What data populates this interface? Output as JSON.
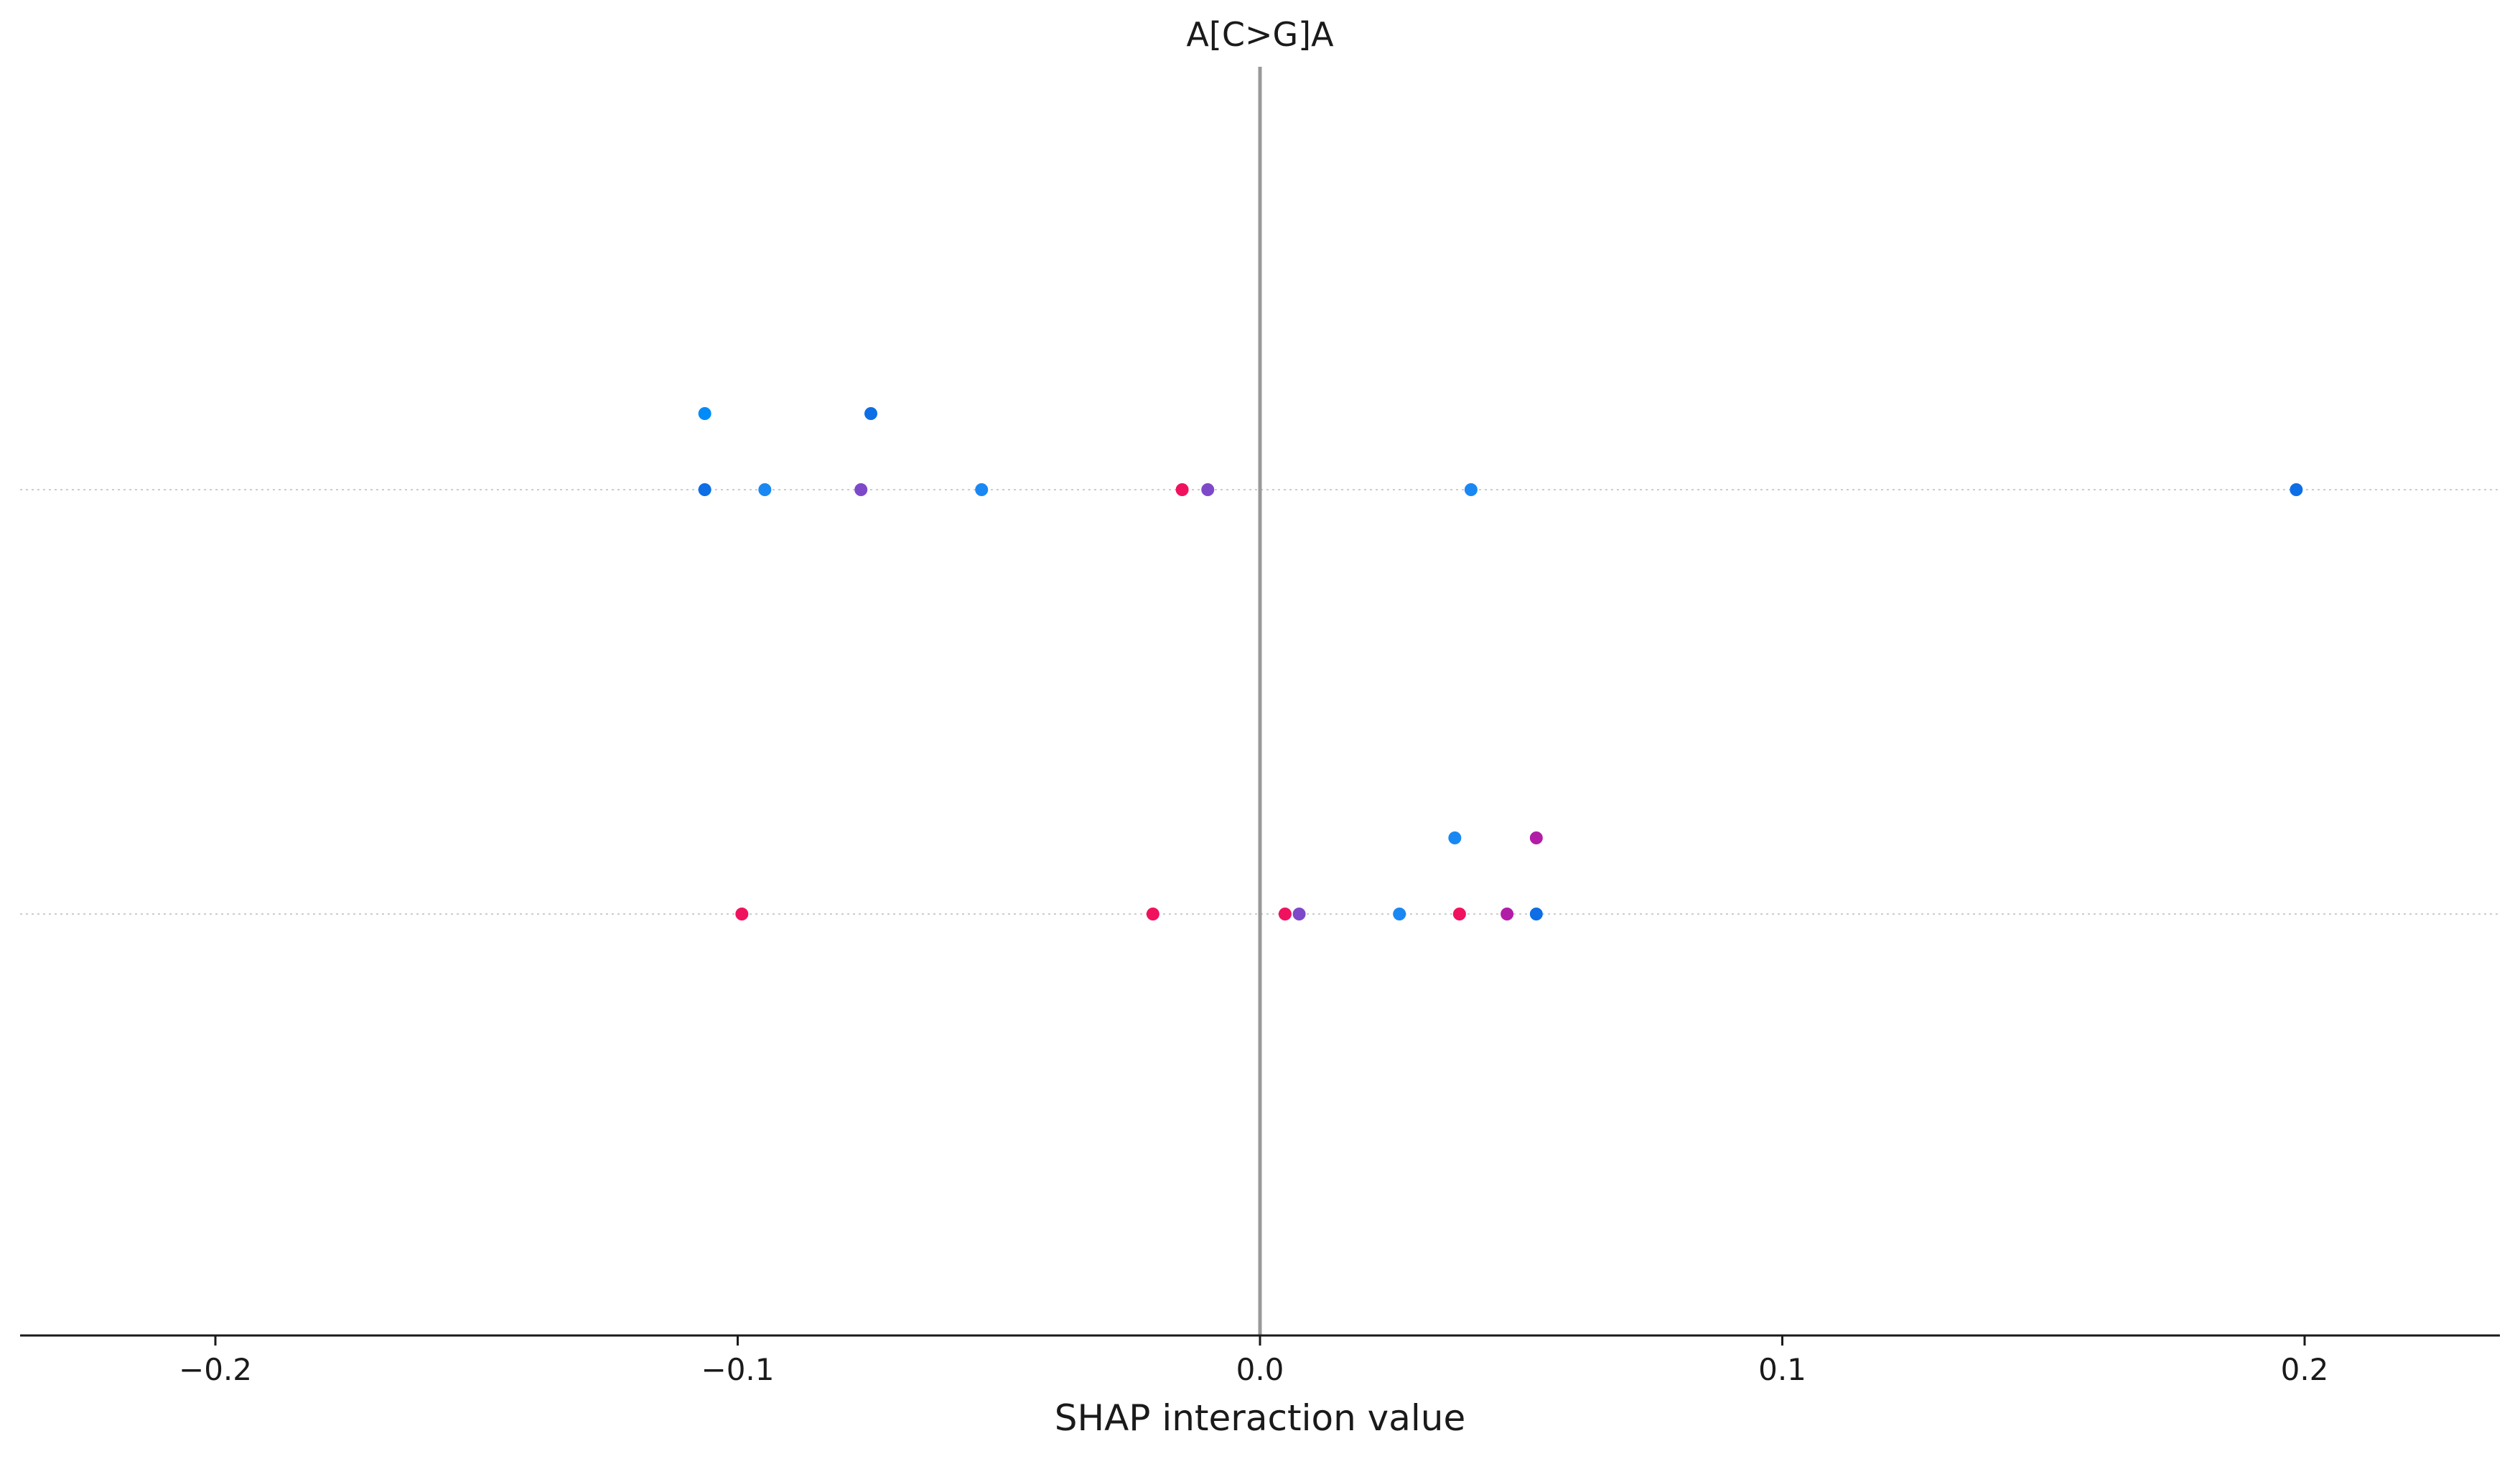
{
  "chart_data": {
    "type": "scatter",
    "title": "A[C>G]A",
    "xlabel": "SHAP interaction value",
    "xlim": [
      -0.2355,
      0.2355
    ],
    "xticks": [
      -0.2,
      -0.1,
      0.0,
      0.1,
      0.2
    ],
    "xtick_labels": [
      "−0.2",
      "−0.1",
      "0.0",
      "0.1",
      "0.2"
    ],
    "zero_line": 0.0,
    "grid": "horizontal dotted guide lines at each row",
    "rows": 2,
    "points": [
      {
        "x": -0.1063,
        "row": 0,
        "level": 1,
        "color": "#008bfb"
      },
      {
        "x": -0.0745,
        "row": 0,
        "level": 1,
        "color": "#0d6ee6"
      },
      {
        "x": -0.1063,
        "row": 0,
        "level": 0,
        "color": "#0d6ee6"
      },
      {
        "x": -0.0948,
        "row": 0,
        "level": 0,
        "color": "#1a88f2"
      },
      {
        "x": -0.0764,
        "row": 0,
        "level": 0,
        "color": "#7e49c8"
      },
      {
        "x": -0.0533,
        "row": 0,
        "level": 0,
        "color": "#1a88f2"
      },
      {
        "x": -0.0149,
        "row": 0,
        "level": 0,
        "color": "#f0125e"
      },
      {
        "x": -0.01,
        "row": 0,
        "level": 0,
        "color": "#7e49c8"
      },
      {
        "x": 0.0404,
        "row": 0,
        "level": 0,
        "color": "#1a88f2"
      },
      {
        "x": 0.1984,
        "row": 0,
        "level": 0,
        "color": "#0d6ee6"
      },
      {
        "x": 0.0373,
        "row": 1,
        "level": 1,
        "color": "#1a88f2"
      },
      {
        "x": 0.0529,
        "row": 1,
        "level": 1,
        "color": "#b21da8"
      },
      {
        "x": -0.0992,
        "row": 1,
        "level": 0,
        "color": "#f0125e"
      },
      {
        "x": -0.0205,
        "row": 1,
        "level": 0,
        "color": "#f0125e"
      },
      {
        "x": 0.0048,
        "row": 1,
        "level": 0,
        "color": "#f0125e"
      },
      {
        "x": 0.0075,
        "row": 1,
        "level": 0,
        "color": "#7e49c8"
      },
      {
        "x": 0.0267,
        "row": 1,
        "level": 0,
        "color": "#1a88f2"
      },
      {
        "x": 0.0382,
        "row": 1,
        "level": 0,
        "color": "#f0125e"
      },
      {
        "x": 0.0473,
        "row": 1,
        "level": 0,
        "color": "#b21da8"
      },
      {
        "x": 0.0529,
        "row": 1,
        "level": 0,
        "color": "#0d6ee6"
      }
    ]
  }
}
